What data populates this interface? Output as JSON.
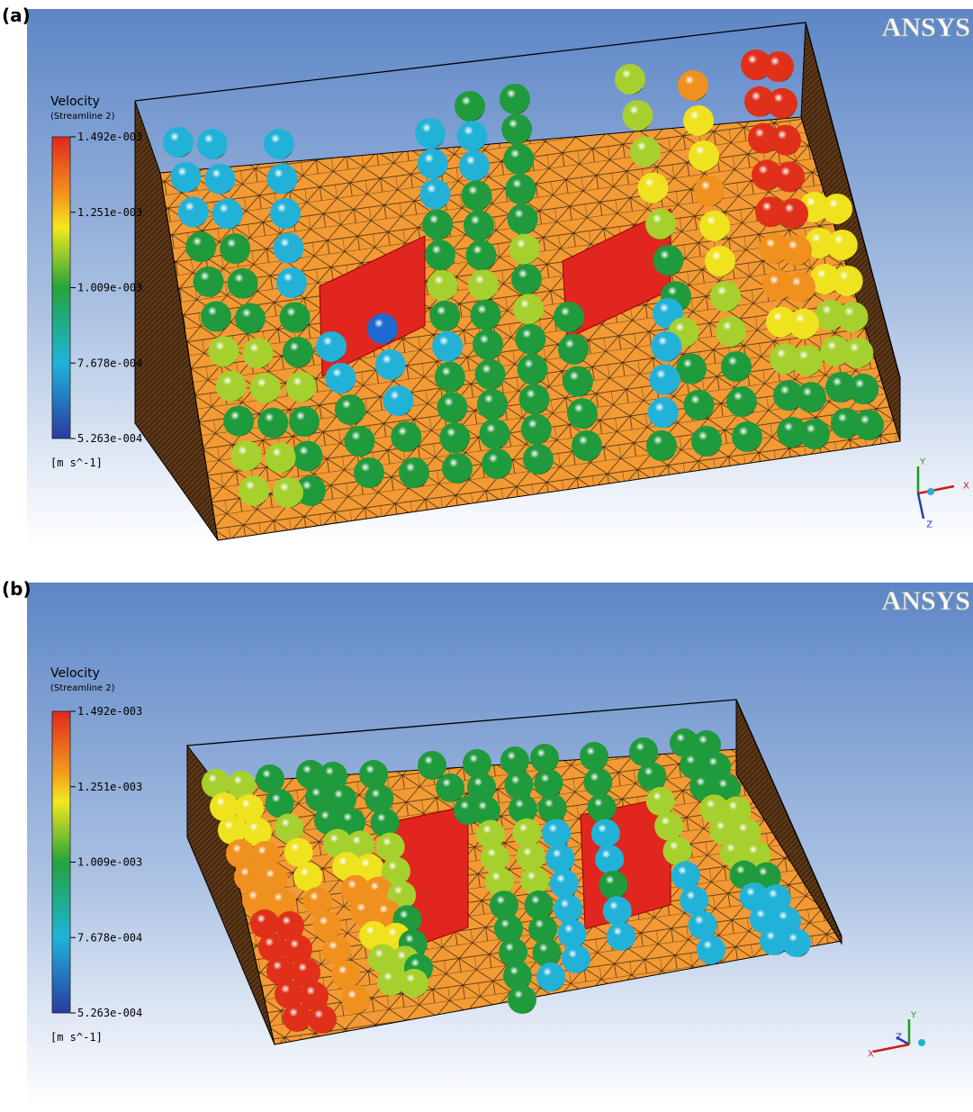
{
  "panels": [
    {
      "label": "(a)",
      "logo": "ANSYS",
      "legend": {
        "title": "Velocity",
        "subtitle": "(Streamline 2)",
        "ticks": [
          "1.492e-003",
          "1.251e-003",
          "1.009e-003",
          "7.678e-004",
          "5.263e-004"
        ],
        "unit": "[m s^-1]"
      },
      "axes": [
        "Y",
        "X",
        "Z"
      ]
    },
    {
      "label": "(b)",
      "logo": "ANSYS",
      "legend": {
        "title": "Velocity",
        "subtitle": "(Streamline 2)",
        "ticks": [
          "1.492e-003",
          "1.251e-003",
          "1.009e-003",
          "7.678e-004",
          "5.263e-004"
        ],
        "unit": "[m s^-1]"
      },
      "axes": [
        "Y",
        "Z",
        "X"
      ]
    }
  ]
}
